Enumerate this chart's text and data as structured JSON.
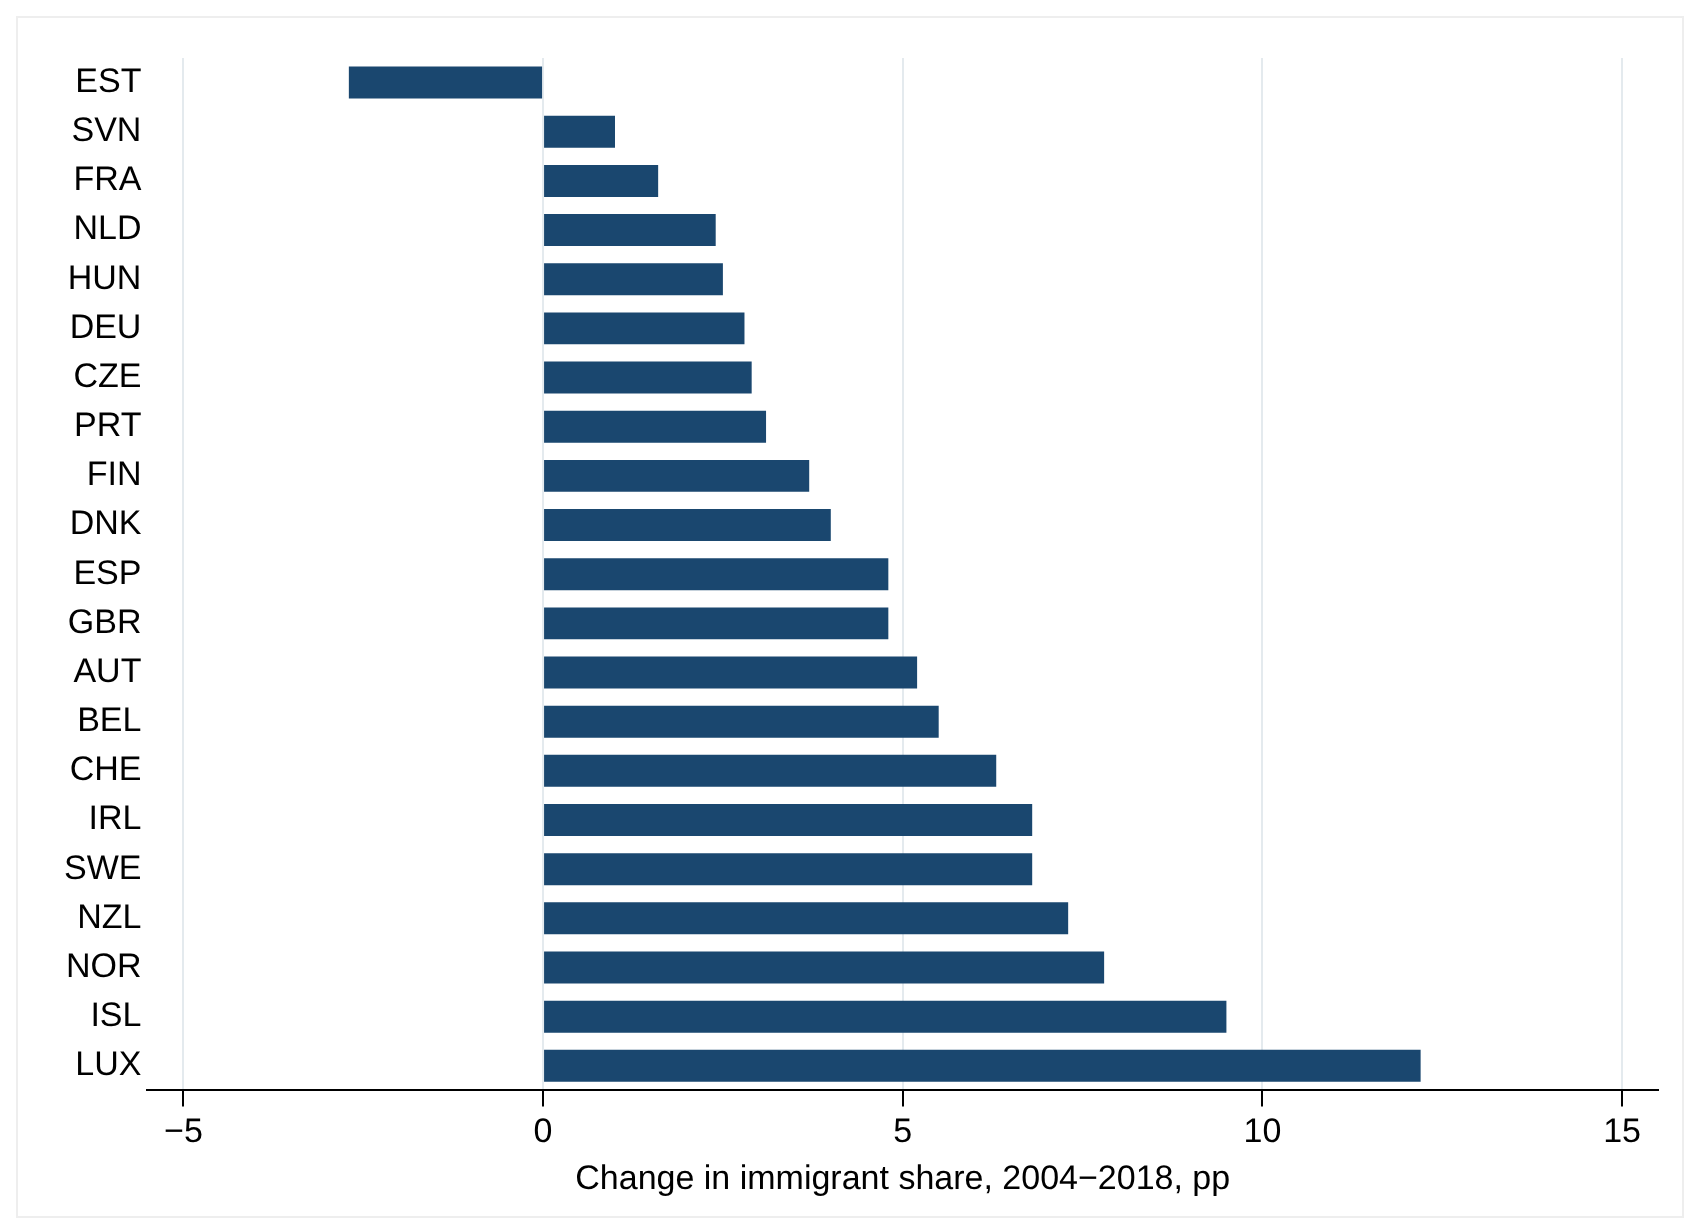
{
  "chart_data": {
    "type": "bar",
    "orientation": "horizontal",
    "xlabel": "Change in immigrant share, 2004−2018, pp",
    "categories": [
      "EST",
      "SVN",
      "FRA",
      "NLD",
      "HUN",
      "DEU",
      "CZE",
      "PRT",
      "FIN",
      "DNK",
      "ESP",
      "GBR",
      "AUT",
      "BEL",
      "CHE",
      "IRL",
      "SWE",
      "NZL",
      "NOR",
      "ISL",
      "LUX"
    ],
    "values": [
      -2.7,
      1.0,
      1.6,
      2.4,
      2.5,
      2.8,
      2.9,
      3.1,
      3.7,
      4.0,
      4.8,
      4.8,
      5.2,
      5.5,
      6.3,
      6.8,
      6.8,
      7.3,
      7.8,
      9.5,
      12.2
    ],
    "color": "#1a476f",
    "xlim": [
      -5.5,
      15.5
    ],
    "xticks": [
      {
        "value": -5,
        "label": "−5"
      },
      0,
      5,
      10,
      15
    ],
    "grid": "x",
    "legend": false
  }
}
